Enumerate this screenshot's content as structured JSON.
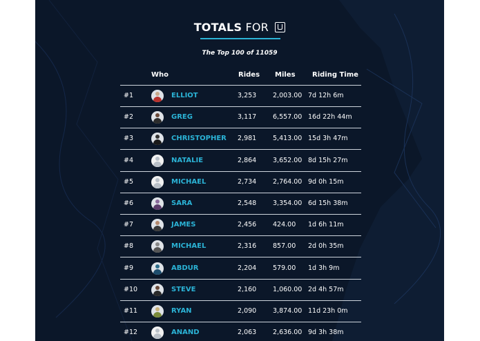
{
  "header": {
    "title_bold": "TOTALS",
    "title_rest": "FOR",
    "logo_icon": "uber-logo-icon",
    "subtitle": "The Top 100 of 11059"
  },
  "columns": {
    "who": "Who",
    "rides": "Rides",
    "miles": "Miles",
    "time": "Riding Time"
  },
  "colors": {
    "accent": "#2bb3d6",
    "background": "#0b1729"
  },
  "rows": [
    {
      "rank": "#1",
      "name": "ELLIOT",
      "rides": "3,253",
      "miles": "2,003.00",
      "time": "7d 12h 6m",
      "avatar": "photo"
    },
    {
      "rank": "#2",
      "name": "GREG",
      "rides": "3,117",
      "miles": "6,557.00",
      "time": "16d 22h 44m",
      "avatar": "photo"
    },
    {
      "rank": "#3",
      "name": "CHRISTOPHER",
      "rides": "2,981",
      "miles": "5,413.00",
      "time": "15d 3h 47m",
      "avatar": "photo"
    },
    {
      "rank": "#4",
      "name": "NATALIE",
      "rides": "2,864",
      "miles": "3,652.00",
      "time": "8d 15h 27m",
      "avatar": "default"
    },
    {
      "rank": "#5",
      "name": "MICHAEL",
      "rides": "2,734",
      "miles": "2,764.00",
      "time": "9d 0h 15m",
      "avatar": "default"
    },
    {
      "rank": "#6",
      "name": "SARA",
      "rides": "2,548",
      "miles": "3,354.00",
      "time": "6d 15h 38m",
      "avatar": "photo"
    },
    {
      "rank": "#7",
      "name": "JAMES",
      "rides": "2,456",
      "miles": "424.00",
      "time": "1d 6h 11m",
      "avatar": "photo"
    },
    {
      "rank": "#8",
      "name": "MICHAEL",
      "rides": "2,316",
      "miles": "857.00",
      "time": "2d 0h 35m",
      "avatar": "photo"
    },
    {
      "rank": "#9",
      "name": "ABDUR",
      "rides": "2,204",
      "miles": "579.00",
      "time": "1d 3h 9m",
      "avatar": "photo"
    },
    {
      "rank": "#10",
      "name": "STEVE",
      "rides": "2,160",
      "miles": "1,060.00",
      "time": "2d 4h 57m",
      "avatar": "photo"
    },
    {
      "rank": "#11",
      "name": "RYAN",
      "rides": "2,090",
      "miles": "3,874.00",
      "time": "11d 23h 0m",
      "avatar": "photo"
    },
    {
      "rank": "#12",
      "name": "ANAND",
      "rides": "2,063",
      "miles": "2,636.00",
      "time": "9d 3h 38m",
      "avatar": "default"
    }
  ]
}
